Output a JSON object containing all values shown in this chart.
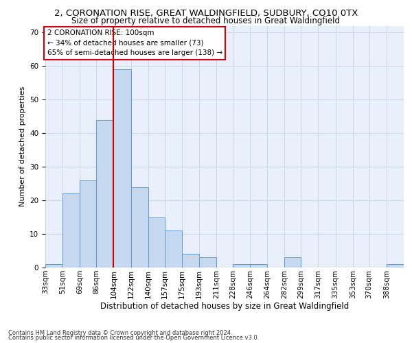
{
  "title1": "2, CORONATION RISE, GREAT WALDINGFIELD, SUDBURY, CO10 0TX",
  "title2": "Size of property relative to detached houses in Great Waldingfield",
  "xlabel": "Distribution of detached houses by size in Great Waldingfield",
  "ylabel": "Number of detached properties",
  "footnote1": "Contains HM Land Registry data © Crown copyright and database right 2024.",
  "footnote2": "Contains public sector information licensed under the Open Government Licence v3.0.",
  "annotation_line1": "2 CORONATION RISE: 100sqm",
  "annotation_line2": "← 34% of detached houses are smaller (73)",
  "annotation_line3": "65% of semi-detached houses are larger (138) →",
  "bar_color": "#c5d8f0",
  "bar_edge_color": "#5b9bd5",
  "vline_color": "#cc0000",
  "vline_x": 104,
  "categories": [
    "33sqm",
    "51sqm",
    "69sqm",
    "86sqm",
    "104sqm",
    "122sqm",
    "140sqm",
    "157sqm",
    "175sqm",
    "193sqm",
    "211sqm",
    "228sqm",
    "246sqm",
    "264sqm",
    "282sqm",
    "299sqm",
    "317sqm",
    "335sqm",
    "353sqm",
    "370sqm",
    "388sqm"
  ],
  "bin_edges": [
    33,
    51,
    69,
    86,
    104,
    122,
    140,
    157,
    175,
    193,
    211,
    228,
    246,
    264,
    282,
    299,
    317,
    335,
    353,
    370,
    388,
    406
  ],
  "values": [
    1,
    22,
    26,
    44,
    59,
    24,
    15,
    11,
    4,
    3,
    0,
    1,
    1,
    0,
    3,
    0,
    0,
    0,
    0,
    0,
    1
  ],
  "ylim": [
    0,
    72
  ],
  "yticks": [
    0,
    10,
    20,
    30,
    40,
    50,
    60,
    70
  ],
  "grid_color": "#d0d8e8",
  "bg_color": "#eaf0fb",
  "annotation_box_color": "#ffffff",
  "annotation_box_edge": "#cc0000",
  "title1_fontsize": 9.5,
  "title2_fontsize": 8.5,
  "xlabel_fontsize": 8.5,
  "ylabel_fontsize": 8,
  "tick_fontsize": 7.5,
  "annotation_fontsize": 7.5,
  "footnote_fontsize": 6.0
}
